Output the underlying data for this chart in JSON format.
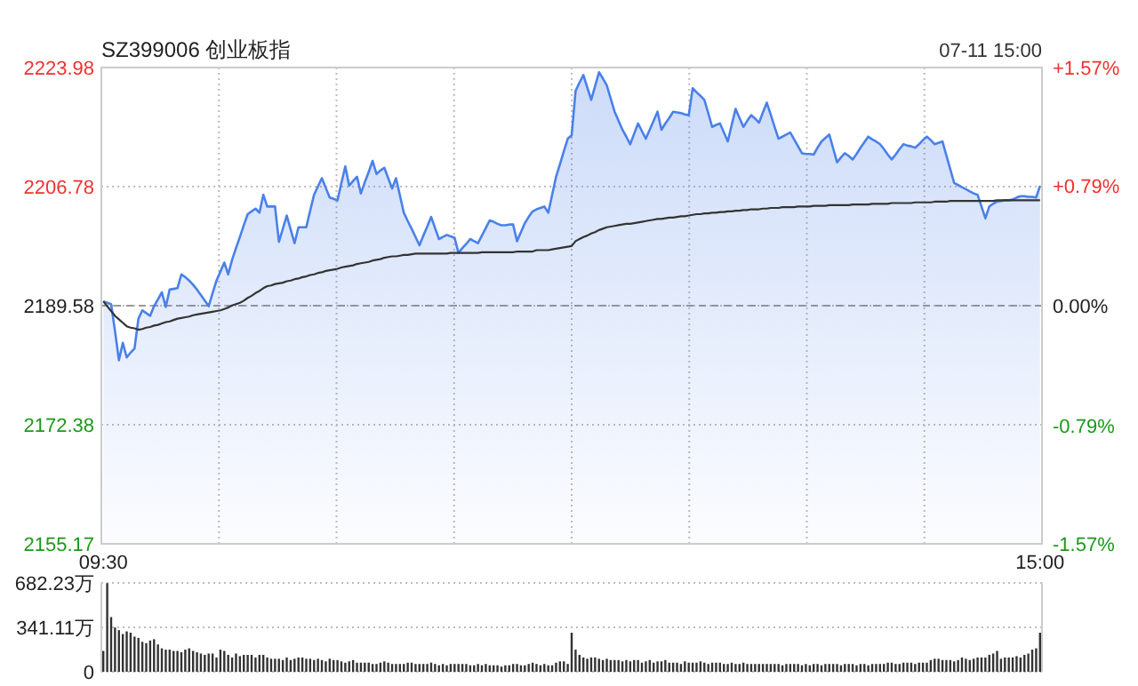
{
  "chart_data": [
    {
      "type": "line",
      "title": "SZ399006 创业板指",
      "annotations": [
        "07-11 15:00"
      ],
      "categories": [
        "09:30",
        null,
        null,
        null,
        null,
        null,
        null,
        null,
        null,
        null,
        null,
        null,
        null,
        null,
        null,
        null,
        null,
        null,
        null,
        null,
        null,
        null,
        null,
        null,
        null,
        null,
        null,
        null,
        null,
        null,
        null,
        null,
        null,
        null,
        null,
        null,
        null,
        null,
        null,
        null,
        null,
        null,
        null,
        null,
        null,
        null,
        null,
        null,
        null,
        null,
        null,
        null,
        null,
        null,
        null,
        null,
        null,
        null,
        null,
        null,
        null,
        null,
        null,
        null,
        null,
        null,
        null,
        null,
        null,
        null,
        null,
        null,
        null,
        null,
        null,
        null,
        null,
        null,
        null,
        null,
        null,
        null,
        null,
        null,
        null,
        null,
        null,
        null,
        null,
        null,
        null,
        null,
        null,
        null,
        null,
        null,
        null,
        null,
        null,
        null,
        null,
        null,
        null,
        null,
        null,
        null,
        null,
        null,
        null,
        null,
        null,
        null,
        null,
        null,
        null,
        null,
        null,
        null,
        null,
        null,
        null,
        null,
        null,
        null,
        null,
        null,
        null,
        null,
        null,
        null,
        null,
        null,
        null,
        null,
        null,
        null,
        null,
        null,
        null,
        null,
        null,
        null,
        null,
        null,
        null,
        null,
        null,
        null,
        null,
        null,
        null,
        null,
        null,
        null,
        null,
        null,
        null,
        null,
        null,
        null,
        null,
        null,
        null,
        null,
        null,
        null,
        null,
        null,
        null,
        null,
        null,
        null,
        null,
        null,
        null,
        null,
        null,
        null,
        null,
        null,
        null,
        null,
        null,
        null,
        null,
        null,
        null,
        null,
        null,
        null,
        null,
        null,
        null,
        null,
        null,
        null,
        null,
        null,
        null,
        null,
        null,
        null,
        null,
        null,
        null,
        null,
        null,
        null,
        null,
        null,
        null,
        null,
        null,
        null,
        null,
        null,
        null,
        null,
        null,
        null,
        null,
        null,
        null,
        null,
        null,
        null,
        null,
        null,
        null,
        null,
        null,
        null,
        null,
        null,
        null,
        null,
        null,
        null,
        null,
        null,
        "15:00"
      ],
      "ylim": [
        2155.17,
        2223.98
      ],
      "yticks": [
        2155.17,
        2172.38,
        2189.58,
        2206.78,
        2223.98
      ],
      "y2lim": [
        -1.57,
        1.57
      ],
      "y2ticks": [
        {
          "value": -1.57,
          "label": "-1.57%"
        },
        {
          "value": -0.79,
          "label": "-0.79%"
        },
        {
          "value": 0,
          "label": "0.00%"
        },
        {
          "value": 0.79,
          "label": "+0.79%"
        },
        {
          "value": 1.57,
          "label": "+1.57%"
        }
      ],
      "grid": true,
      "ref_lines": [
        {
          "axis": "y",
          "value": 2189.58,
          "color": "#999999",
          "line_style": "dashed"
        }
      ],
      "series": [
        {
          "type": "area",
          "color": "#4a80ea",
          "values": [
            2190.2,
            2190.0,
            2189.8,
            2185.9,
            2181.7,
            2184.2,
            2182.1,
            2182.8,
            2183.4,
            2187.7,
            2188.9,
            2188.5,
            2188.1,
            2189.5,
            2190.5,
            2191.5,
            2189.4,
            2191.9,
            2192.0,
            2192.1,
            2194.1,
            2193.7,
            2193.2,
            2192.6,
            2191.9,
            2191.1,
            2190.3,
            2189.5,
            2191.4,
            2193.2,
            2194.5,
            2195.8,
            2194.1,
            2196.2,
            2197.9,
            2199.5,
            2201.2,
            2202.8,
            2203.2,
            2203.6,
            2203.0,
            2205.6,
            2203.9,
            2203.9,
            2203.9,
            2198.8,
            2200.7,
            2202.6,
            2200.6,
            2198.6,
            2200.9,
            2200.9,
            2200.9,
            2203.3,
            2205.6,
            2206.8,
            2208.0,
            2206.6,
            2205.2,
            2205.0,
            2204.8,
            2207.3,
            2209.7,
            2206.9,
            2207.6,
            2208.2,
            2205.8,
            2207.4,
            2208.9,
            2210.5,
            2208.6,
            2209.1,
            2209.5,
            2208.0,
            2206.5,
            2208.0,
            2205.5,
            2203.0,
            2201.8,
            2200.7,
            2199.5,
            2198.3,
            2199.7,
            2201.0,
            2202.4,
            2200.8,
            2199.2,
            2199.5,
            2199.8,
            2199.6,
            2199.4,
            2197.2,
            2197.9,
            2198.5,
            2199.2,
            2198.9,
            2198.6,
            2199.7,
            2200.8,
            2201.9,
            2201.7,
            2201.4,
            2201.2,
            2201.2,
            2201.3,
            2201.3,
            2198.9,
            2200.2,
            2201.5,
            2202.4,
            2203.2,
            2203.5,
            2203.7,
            2203.9,
            2203.0,
            2205.6,
            2208.2,
            2210.0,
            2211.9,
            2213.7,
            2214.2,
            2220.6,
            2221.8,
            2222.9,
            2221.1,
            2219.3,
            2221.3,
            2223.3,
            2222.4,
            2221.4,
            2219.5,
            2217.6,
            2216.3,
            2215.0,
            2214.0,
            2212.9,
            2214.4,
            2215.9,
            2214.8,
            2213.7,
            2215.0,
            2216.3,
            2217.6,
            2215.0,
            2215.9,
            2216.7,
            2217.6,
            2217.5,
            2217.4,
            2217.2,
            2217.1,
            2221.0,
            2220.4,
            2219.9,
            2219.3,
            2217.4,
            2215.4,
            2215.7,
            2215.9,
            2214.6,
            2213.3,
            2215.7,
            2218.0,
            2216.7,
            2215.4,
            2216.3,
            2217.1,
            2216.6,
            2216.0,
            2217.5,
            2218.9,
            2217.2,
            2215.4,
            2213.7,
            2214.0,
            2214.3,
            2214.6,
            2213.6,
            2212.6,
            2211.6,
            2211.5,
            2211.5,
            2211.4,
            2212.4,
            2213.3,
            2213.8,
            2214.3,
            2212.3,
            2210.3,
            2211.0,
            2211.6,
            2211.2,
            2210.7,
            2211.5,
            2212.4,
            2213.2,
            2214.0,
            2213.6,
            2213.3,
            2212.9,
            2212.2,
            2211.4,
            2210.7,
            2211.4,
            2212.2,
            2212.9,
            2212.7,
            2212.6,
            2212.4,
            2212.9,
            2213.5,
            2214.0,
            2213.5,
            2212.9,
            2213.1,
            2213.3,
            2211.3,
            2209.3,
            2207.3,
            2207.0,
            2206.7,
            2206.4,
            2206.1,
            2205.8,
            2205.6,
            2203.9,
            2202.2,
            2203.9,
            2204.3,
            2204.6,
            2204.7,
            2204.8,
            2204.8,
            2204.9,
            2205.2,
            2205.4,
            2205.4,
            2205.3,
            2205.3,
            2205.2,
            2206.9
          ]
        },
        {
          "type": "line",
          "color": "#333333",
          "values": [
            2190.2,
            2189.5,
            2188.8,
            2188.1,
            2187.6,
            2187.1,
            2186.6,
            2186.4,
            2186.3,
            2186.1,
            2186.2,
            2186.4,
            2186.5,
            2186.7,
            2186.8,
            2187.0,
            2187.2,
            2187.3,
            2187.5,
            2187.7,
            2187.8,
            2187.9,
            2188.0,
            2188.2,
            2188.3,
            2188.4,
            2188.5,
            2188.6,
            2188.7,
            2188.8,
            2188.9,
            2189.1,
            2189.3,
            2189.6,
            2189.8,
            2190.0,
            2190.3,
            2190.7,
            2191.0,
            2191.4,
            2191.7,
            2192.1,
            2192.4,
            2192.5,
            2192.7,
            2192.8,
            2192.9,
            2193.1,
            2193.2,
            2193.4,
            2193.5,
            2193.7,
            2193.8,
            2194.0,
            2194.1,
            2194.3,
            2194.4,
            2194.6,
            2194.7,
            2194.8,
            2194.9,
            2195.1,
            2195.2,
            2195.3,
            2195.4,
            2195.6,
            2195.7,
            2195.8,
            2195.9,
            2196.1,
            2196.2,
            2196.3,
            2196.5,
            2196.6,
            2196.7,
            2196.7,
            2196.8,
            2196.9,
            2196.9,
            2197.0,
            2197.1,
            2197.1,
            2197.1,
            2197.1,
            2197.1,
            2197.1,
            2197.1,
            2197.1,
            2197.1,
            2197.2,
            2197.2,
            2197.2,
            2197.2,
            2197.2,
            2197.2,
            2197.2,
            2197.2,
            2197.3,
            2197.3,
            2197.3,
            2197.3,
            2197.3,
            2197.3,
            2197.3,
            2197.3,
            2197.3,
            2197.4,
            2197.4,
            2197.4,
            2197.4,
            2197.4,
            2197.6,
            2197.6,
            2197.6,
            2197.6,
            2197.7,
            2197.8,
            2197.9,
            2198.0,
            2198.1,
            2198.2,
            2198.9,
            2199.2,
            2199.5,
            2199.7,
            2200.0,
            2200.2,
            2200.5,
            2200.7,
            2200.9,
            2201.0,
            2201.1,
            2201.2,
            2201.3,
            2201.4,
            2201.4,
            2201.5,
            2201.6,
            2201.7,
            2201.8,
            2201.9,
            2202.0,
            2202.1,
            2202.1,
            2202.2,
            2202.3,
            2202.3,
            2202.4,
            2202.5,
            2202.5,
            2202.6,
            2202.7,
            2202.8,
            2202.8,
            2202.9,
            2202.9,
            2203.0,
            2203.0,
            2203.1,
            2203.1,
            2203.2,
            2203.2,
            2203.3,
            2203.3,
            2203.4,
            2203.4,
            2203.5,
            2203.5,
            2203.5,
            2203.6,
            2203.6,
            2203.7,
            2203.7,
            2203.7,
            2203.8,
            2203.8,
            2203.8,
            2203.8,
            2203.9,
            2203.9,
            2203.9,
            2203.9,
            2204.0,
            2204.0,
            2204.0,
            2204.0,
            2204.1,
            2204.1,
            2204.1,
            2204.1,
            2204.1,
            2204.1,
            2204.2,
            2204.2,
            2204.2,
            2204.2,
            2204.2,
            2204.3,
            2204.3,
            2204.3,
            2204.3,
            2204.3,
            2204.4,
            2204.4,
            2204.4,
            2204.4,
            2204.4,
            2204.4,
            2204.5,
            2204.5,
            2204.5,
            2204.5,
            2204.5,
            2204.6,
            2204.6,
            2204.6,
            2204.6,
            2204.7,
            2204.7,
            2204.7,
            2204.7,
            2204.7,
            2204.7,
            2204.7,
            2204.7,
            2204.7,
            2204.7,
            2204.7,
            2204.7,
            2204.8,
            2204.8,
            2204.8,
            2204.8,
            2204.8,
            2204.8,
            2204.8,
            2204.8,
            2204.8,
            2204.8,
            2204.8,
            2204.8
          ]
        }
      ]
    },
    {
      "type": "bar",
      "color": "#333333",
      "grid": "y",
      "tick_labels": "y",
      "ylim": [
        0,
        682.23
      ],
      "yticks": [
        0,
        {
          "value": 341.11,
          "label": "341.11万"
        },
        {
          "value": 682.23,
          "label": "682.23万"
        }
      ],
      "categories": [
        null,
        null,
        null,
        null,
        null,
        null,
        null,
        null,
        null,
        null,
        null,
        null,
        null,
        null,
        null,
        null,
        null,
        null,
        null,
        null,
        null,
        null,
        null,
        null,
        null,
        null,
        null,
        null,
        null,
        null,
        null,
        null,
        null,
        null,
        null,
        null,
        null,
        null,
        null,
        null,
        null,
        null,
        null,
        null,
        null,
        null,
        null,
        null,
        null,
        null,
        null,
        null,
        null,
        null,
        null,
        null,
        null,
        null,
        null,
        null,
        null,
        null,
        null,
        null,
        null,
        null,
        null,
        null,
        null,
        null,
        null,
        null,
        null,
        null,
        null,
        null,
        null,
        null,
        null,
        null,
        null,
        null,
        null,
        null,
        null,
        null,
        null,
        null,
        null,
        null,
        null,
        null,
        null,
        null,
        null,
        null,
        null,
        null,
        null,
        null,
        null,
        null,
        null,
        null,
        null,
        null,
        null,
        null,
        null,
        null,
        null,
        null,
        null,
        null,
        null,
        null,
        null,
        null,
        null,
        null,
        null,
        null,
        null,
        null,
        null,
        null,
        null,
        null,
        null,
        null,
        null,
        null,
        null,
        null,
        null,
        null,
        null,
        null,
        null,
        null,
        null,
        null,
        null,
        null,
        null,
        null,
        null,
        null,
        null,
        null,
        null,
        null,
        null,
        null,
        null,
        null,
        null,
        null,
        null,
        null,
        null,
        null,
        null,
        null,
        null,
        null,
        null,
        null,
        null,
        null,
        null,
        null,
        null,
        null,
        null,
        null,
        null,
        null,
        null,
        null,
        null,
        null,
        null,
        null,
        null,
        null,
        null,
        null,
        null,
        null,
        null,
        null,
        null,
        null,
        null,
        null,
        null,
        null,
        null,
        null,
        null,
        null,
        null,
        null,
        null,
        null,
        null,
        null,
        null,
        null,
        null,
        null,
        null,
        null,
        null,
        null,
        null,
        null,
        null,
        null,
        null,
        null,
        null,
        null,
        null,
        null,
        null,
        null,
        null,
        null,
        null,
        null,
        null,
        null,
        null,
        null,
        null,
        null,
        null,
        null,
        null
      ],
      "values": [
        160,
        680,
        420,
        340,
        320,
        290,
        310,
        300,
        270,
        260,
        230,
        220,
        240,
        250,
        210,
        180,
        170,
        170,
        160,
        160,
        150,
        170,
        180,
        160,
        150,
        140,
        130,
        140,
        140,
        110,
        170,
        160,
        130,
        110,
        140,
        120,
        130,
        130,
        130,
        110,
        130,
        130,
        110,
        100,
        100,
        100,
        90,
        110,
        90,
        100,
        110,
        110,
        100,
        100,
        90,
        100,
        90,
        80,
        100,
        90,
        90,
        80,
        70,
        80,
        90,
        70,
        70,
        70,
        70,
        60,
        60,
        70,
        80,
        70,
        60,
        60,
        60,
        60,
        70,
        70,
        60,
        60,
        60,
        60,
        70,
        60,
        50,
        60,
        50,
        60,
        60,
        60,
        60,
        60,
        50,
        50,
        60,
        50,
        60,
        50,
        50,
        50,
        40,
        50,
        50,
        60,
        60,
        50,
        50,
        60,
        70,
        60,
        50,
        60,
        50,
        50,
        70,
        80,
        80,
        60,
        300,
        170,
        130,
        110,
        100,
        110,
        110,
        100,
        90,
        100,
        90,
        90,
        90,
        80,
        90,
        80,
        90,
        90,
        70,
        80,
        90,
        70,
        80,
        80,
        90,
        70,
        70,
        70,
        60,
        80,
        70,
        70,
        70,
        80,
        70,
        60,
        70,
        70,
        70,
        60,
        60,
        70,
        60,
        60,
        70,
        60,
        60,
        60,
        60,
        60,
        60,
        60,
        60,
        60,
        50,
        60,
        60,
        60,
        60,
        50,
        60,
        50,
        60,
        60,
        50,
        60,
        60,
        60,
        60,
        50,
        60,
        60,
        60,
        50,
        60,
        60,
        50,
        60,
        60,
        60,
        60,
        70,
        70,
        60,
        60,
        70,
        70,
        70,
        60,
        70,
        70,
        70,
        90,
        100,
        100,
        90,
        90,
        90,
        80,
        90,
        110,
        100,
        90,
        100,
        110,
        110,
        110,
        130,
        140,
        160,
        100,
        110,
        110,
        110,
        120,
        110,
        130,
        140,
        170,
        180,
        300
      ]
    }
  ]
}
